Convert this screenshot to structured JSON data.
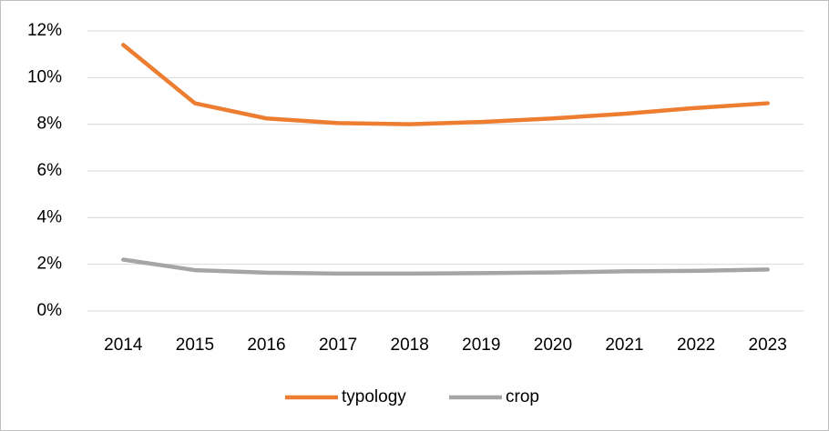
{
  "chart_data": {
    "type": "line",
    "categories": [
      "2014",
      "2015",
      "2016",
      "2017",
      "2018",
      "2019",
      "2020",
      "2021",
      "2022",
      "2023"
    ],
    "series": [
      {
        "name": "typology",
        "color": "#ed7d31",
        "values": [
          11.4,
          8.9,
          8.25,
          8.05,
          8.0,
          8.1,
          8.25,
          8.45,
          8.7,
          8.9
        ]
      },
      {
        "name": "crop",
        "color": "#a5a5a5",
        "values": [
          2.2,
          1.75,
          1.64,
          1.6,
          1.6,
          1.62,
          1.65,
          1.7,
          1.72,
          1.78
        ]
      }
    ],
    "ylim": [
      0,
      12
    ],
    "yticks": [
      {
        "value": 0,
        "label": "0%"
      },
      {
        "value": 2,
        "label": "2%"
      },
      {
        "value": 4,
        "label": "4%"
      },
      {
        "value": 6,
        "label": "6%"
      },
      {
        "value": 8,
        "label": "8%"
      },
      {
        "value": 10,
        "label": "10%"
      },
      {
        "value": 12,
        "label": "12%"
      }
    ],
    "grid": true,
    "legend": "bottom"
  }
}
